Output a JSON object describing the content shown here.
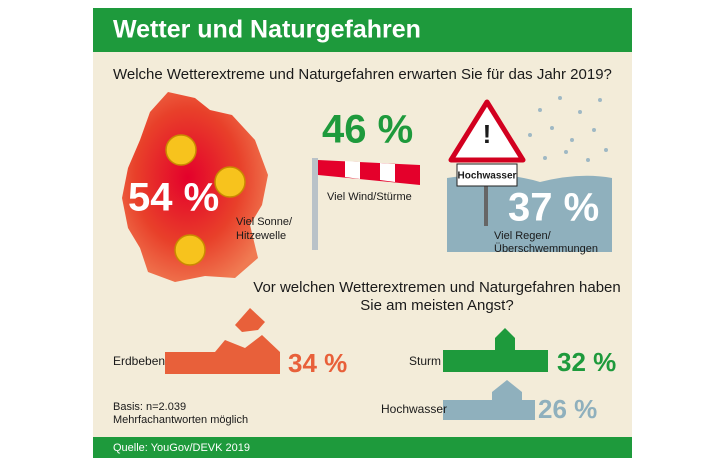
{
  "header": {
    "title": "Wetter und Naturgefahren"
  },
  "question1": "Welche Wetterextreme und Naturgefahren erwarten Sie für das Jahr 2019?",
  "expectations": [
    {
      "value": "54 %",
      "label": [
        "Viel Sonne/",
        "Hitzewelle"
      ]
    },
    {
      "value": "46 %",
      "label": [
        "Viel Wind/Stürme"
      ]
    },
    {
      "value": "37 %",
      "label": [
        "Viel Regen/",
        "Überschwemmungen"
      ]
    }
  ],
  "sign": "Hochwasser",
  "question2": [
    "Vor welchen Wetterextremen und Naturgefahren haben",
    "Sie am meisten Angst?"
  ],
  "fears": [
    {
      "label": "Erdbeben",
      "value": "34 %"
    },
    {
      "label": "Sturm",
      "value": "32 %"
    },
    {
      "label": "Hochwasser",
      "value": "26 %"
    }
  ],
  "basis": [
    "Basis: n=2.039",
    "Mehrfachantworten möglich"
  ],
  "source": "Quelle: YouGov/DEVK 2019"
}
